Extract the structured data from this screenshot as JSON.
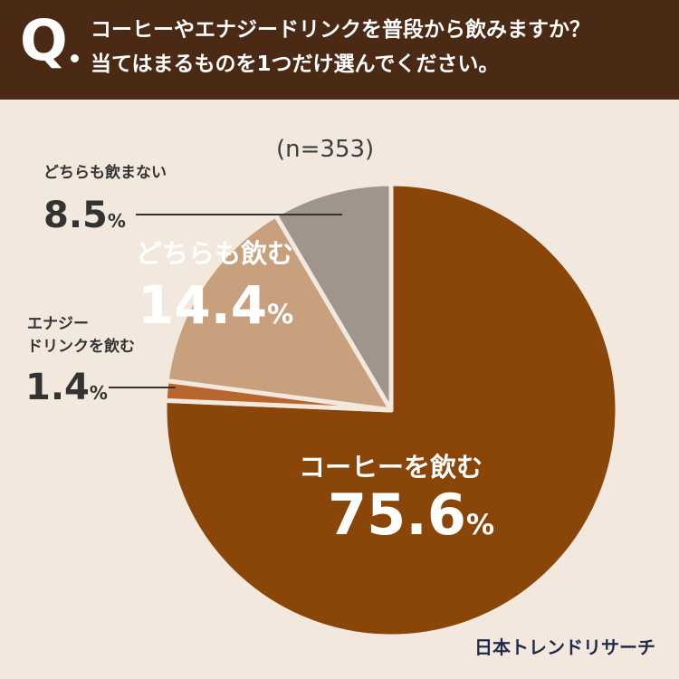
{
  "header": {
    "q_mark": "Q",
    "line1": "コーヒーやエナジードリンクを普段から飲みますか？",
    "line2": "当てはまるものを1つだけ選んでください。"
  },
  "sample": "(n=353)",
  "brand": "日本トレンドリサーチ",
  "percent_sign": "%",
  "colors": {
    "header_bg": "#4a2a14",
    "page_bg": "#f3e8dd",
    "coffee": "#8a4508",
    "energy": "#b9662e",
    "both": "#c9a07e",
    "neither": "#a0958b",
    "separator": "#f3e8dd"
  },
  "chart_data": {
    "type": "pie",
    "title": "コーヒーやエナジードリンクを普段から飲みますか？当てはまるものを1つだけ選んでください。",
    "sample_size": 353,
    "start": "12 o'clock, clockwise",
    "slices": [
      {
        "name": "コーヒーを飲む",
        "value": 75.6,
        "color": "#8a4508"
      },
      {
        "name": "エナジードリンクを飲む",
        "value": 1.4,
        "color": "#b9662e"
      },
      {
        "name": "どちらも飲む",
        "value": 14.4,
        "color": "#c9a07e"
      },
      {
        "name": "どちらも飲まない",
        "value": 8.5,
        "color": "#a0958b"
      }
    ],
    "labels": {
      "coffee": {
        "name": "コーヒーを飲む",
        "value": "75.6"
      },
      "energy": {
        "name_line1": "エナジー",
        "name_line2": "ドリンクを飲む",
        "value": "1.4"
      },
      "both": {
        "name": "どちらも飲む",
        "value": "14.4"
      },
      "neither": {
        "name": "どちらも飲まない",
        "value": "8.5"
      }
    }
  }
}
